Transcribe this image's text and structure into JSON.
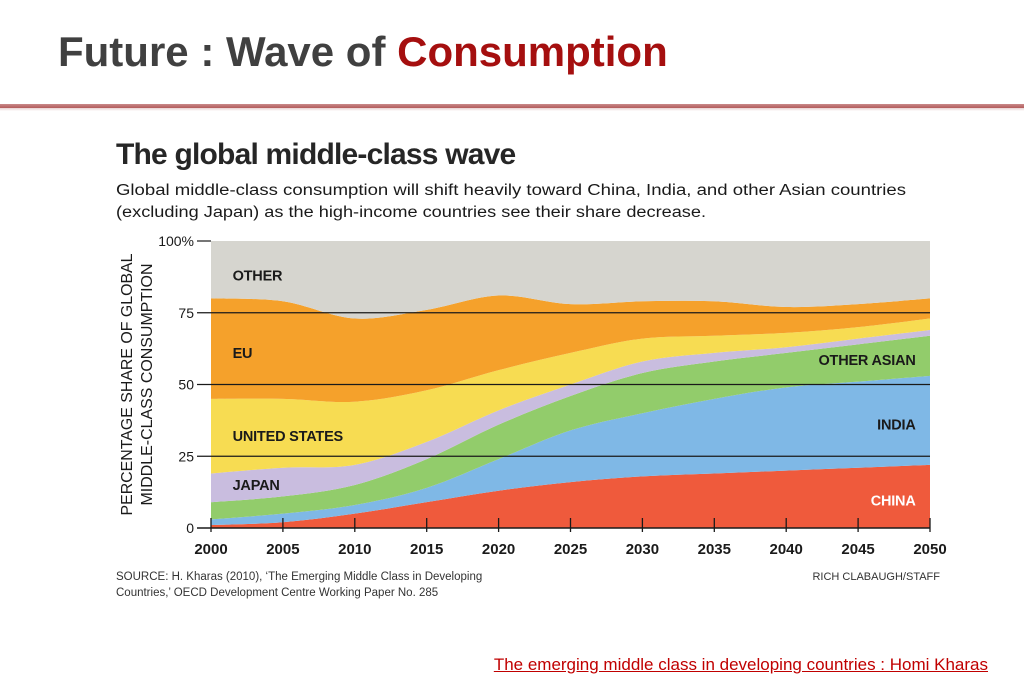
{
  "slide": {
    "title_part1": "Future : Wave of ",
    "title_part2": "Consumption",
    "accent_color": "#a50f0f",
    "footer_link": "The emerging middle class in developing countries : Homi Kharas"
  },
  "chart_data": {
    "type": "area",
    "stacked": true,
    "title": "The global middle-class wave",
    "subtitle_lines": [
      "Global middle-class consumption will shift heavily toward China, India, and other Asian countries",
      "(excluding Japan) as the high-income countries see their share decrease."
    ],
    "ylabel_lines": [
      "PERCENTAGE SHARE OF GLOBAL",
      "MIDDLE-CLASS CONSUMPTION"
    ],
    "xlabel": "",
    "x": [
      2000,
      2005,
      2010,
      2015,
      2020,
      2025,
      2030,
      2035,
      2040,
      2045,
      2050
    ],
    "x_ticks": [
      "2000",
      "2005",
      "2010",
      "2015",
      "2020",
      "2025",
      "2030",
      "2035",
      "2040",
      "2045",
      "2050"
    ],
    "y_ticks": [
      {
        "value": 0,
        "label": "0"
      },
      {
        "value": 25,
        "label": "25"
      },
      {
        "value": 50,
        "label": "50"
      },
      {
        "value": 75,
        "label": "75"
      },
      {
        "value": 100,
        "label": "100%"
      }
    ],
    "ylim": [
      0,
      100
    ],
    "xlim": [
      2000,
      2050
    ],
    "grid_y": [
      25,
      50,
      75
    ],
    "series": [
      {
        "name": "CHINA",
        "color": "#ef5a3c",
        "label_color": "#ffffff",
        "values": [
          1,
          2,
          5,
          9,
          13,
          16,
          18,
          19,
          20,
          21,
          22
        ]
      },
      {
        "name": "INDIA",
        "color": "#7fb8e6",
        "label_color": "#1a1a1a",
        "values": [
          2,
          3,
          3,
          5,
          11,
          18,
          22,
          26,
          29,
          30,
          31
        ]
      },
      {
        "name": "OTHER ASIAN",
        "color": "#92cc6b",
        "label_color": "#1a1a1a",
        "values": [
          6,
          6,
          7,
          10,
          12,
          12,
          14,
          13,
          12,
          13,
          14
        ]
      },
      {
        "name": "JAPAN",
        "color": "#c9bddf",
        "label_color": "#1a1a1a",
        "values": [
          10,
          10,
          7,
          6,
          5,
          4,
          4,
          3,
          2,
          2,
          2
        ]
      },
      {
        "name": "UNITED STATES",
        "color": "#f7dc52",
        "label_color": "#1a1a1a",
        "values": [
          26,
          24,
          22,
          18,
          14,
          11,
          8,
          6,
          5,
          4,
          4
        ]
      },
      {
        "name": "EU",
        "color": "#f5a12b",
        "label_color": "#1a1a1a",
        "values": [
          35,
          34,
          29,
          28,
          26,
          17,
          13,
          12,
          9,
          8,
          7
        ]
      },
      {
        "name": "OTHER",
        "color": "#d6d5cf",
        "label_color": "#1a1a1a",
        "values": [
          20,
          21,
          27,
          24,
          19,
          22,
          21,
          21,
          23,
          22,
          20
        ]
      }
    ],
    "series_labels": [
      {
        "text": "OTHER",
        "x": 2001.5,
        "y": 88,
        "anchor": "start"
      },
      {
        "text": "EU",
        "x": 2001.5,
        "y": 61,
        "anchor": "start"
      },
      {
        "text": "UNITED STATES",
        "x": 2001.5,
        "y": 32,
        "anchor": "start"
      },
      {
        "text": "JAPAN",
        "x": 2001.5,
        "y": 15,
        "anchor": "start"
      },
      {
        "text": "OTHER ASIAN",
        "x": 2049,
        "y": 58.5,
        "anchor": "end"
      },
      {
        "text": "INDIA",
        "x": 2049,
        "y": 36,
        "anchor": "end"
      },
      {
        "text": "CHINA",
        "x": 2049,
        "y": 9.5,
        "anchor": "end"
      }
    ],
    "source_lines": [
      "SOURCE: H. Kharas (2010), ‘The Emerging Middle Class in Developing",
      "Countries,’ OECD Development Centre Working Paper No. 285"
    ],
    "credit": "RICH CLABAUGH/STAFF"
  }
}
